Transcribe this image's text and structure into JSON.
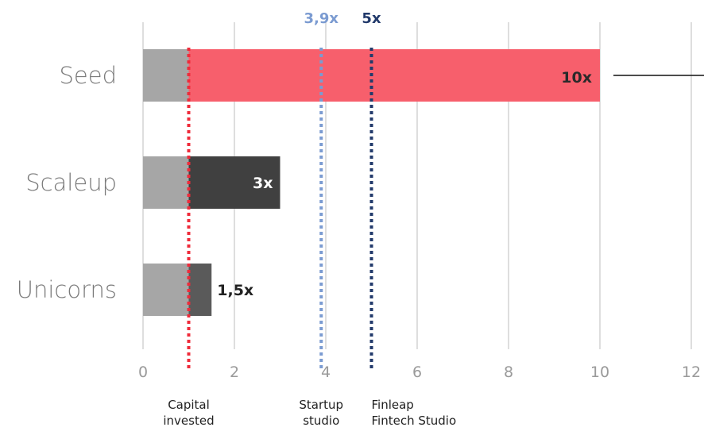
{
  "chart_data": {
    "type": "bar",
    "orientation": "horizontal",
    "categories": [
      "Seed",
      "Scaleup",
      "Unicorns"
    ],
    "values": [
      10,
      3,
      1.5
    ],
    "data_labels": [
      "10x",
      "3x",
      "1,5x"
    ],
    "xlim": [
      0,
      12
    ],
    "x_ticks": [
      0,
      2,
      4,
      6,
      8,
      10,
      12
    ],
    "grid": "vertical",
    "capital_invested_value": 1,
    "colors": {
      "capital": "#a6a6a6",
      "seed": "#f75f6c",
      "scaleup": "#404040",
      "unicorns": "#5a5a5a",
      "grid": "#dedede",
      "capital_line": "#ef2b3a",
      "startup_line": "#7b9bd1",
      "finleap_line": "#223a6b"
    },
    "reference_lines": [
      {
        "value": 1,
        "top_label": "",
        "bottom_label": [
          "Capital",
          "invested"
        ],
        "color": "#ef2b3a"
      },
      {
        "value": 3.9,
        "top_label": "3,9x",
        "bottom_label": [
          "Startup",
          "studio"
        ],
        "color": "#7b9bd1"
      },
      {
        "value": 5,
        "top_label": "5x",
        "bottom_label": [
          "Finleap",
          "Fintech Studio"
        ],
        "color": "#223a6b"
      }
    ]
  }
}
